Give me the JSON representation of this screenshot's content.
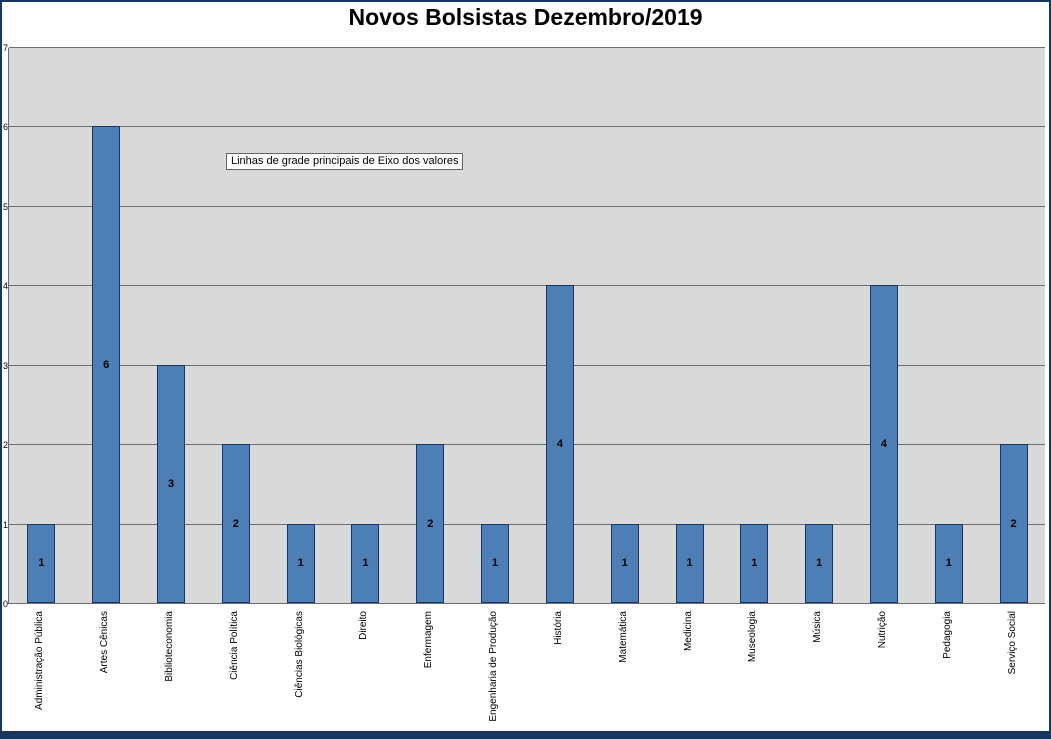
{
  "title": "Novos Bolsistas Dezembro/2019",
  "tooltip": "Linhas de grade principais de Eixo dos valores",
  "chart_data": {
    "type": "bar",
    "title": "Novos Bolsistas Dezembro/2019",
    "categories": [
      "Administração Pública",
      "Artes Cênicas",
      "Biblioteconomia",
      "Ciência Política",
      "Ciências Biológicas",
      "Direito",
      "Enfermagem",
      "Engenharia de Produção",
      "História",
      "Matemática",
      "Medicina",
      "Museologia",
      "Música",
      "Nutrição",
      "Pedagogia",
      "Serviço Social"
    ],
    "values": [
      1,
      6,
      3,
      2,
      1,
      1,
      2,
      1,
      4,
      1,
      1,
      1,
      1,
      4,
      1,
      2
    ],
    "data_labels": [
      1,
      6,
      3,
      2,
      1,
      1,
      2,
      1,
      4,
      1,
      1,
      1,
      1,
      4,
      1,
      2
    ],
    "xlabel": "",
    "ylabel": "",
    "ylim": [
      0,
      7
    ],
    "yticks": [
      0,
      1,
      2,
      3,
      4,
      5,
      6,
      7
    ],
    "grid": true,
    "legend": false,
    "bar_color": "#4E7EB6",
    "bar_border_color": "#17375E",
    "plot_background": "#D9D9D9",
    "gridline_color": "#6E6E6E",
    "frame_color": "#17375E"
  }
}
